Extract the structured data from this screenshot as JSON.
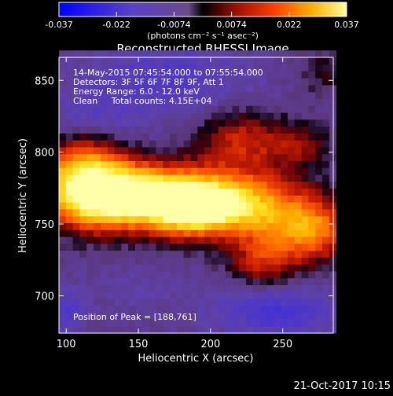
{
  "chart_data": {
    "type": "heatmap",
    "title": "Reconstructed RHESSI Image",
    "xlabel": "Heliocentric X (arcsec)",
    "ylabel": "Heliocentric Y (arcsec)",
    "xlim": [
      95,
      285
    ],
    "ylim": [
      674,
      866
    ],
    "x_ticks": [
      100,
      150,
      200,
      250
    ],
    "y_ticks": [
      700,
      750,
      800,
      850
    ],
    "colorbar": {
      "ticks": [
        "-0.037",
        "-0.022",
        "-0.0074",
        "0.0074",
        "0.022",
        "0.037"
      ],
      "range": [
        -0.037,
        0.037
      ],
      "units": "(photons cm⁻² s⁻¹ asec⁻²)"
    },
    "annotations": [
      "14-May-2015 07:45:54.000 to 07:55:54.000",
      "Detectors: 3F 5F 6F 7F 8F 9F, Att 1",
      "Energy Range: 6.0 - 12.0 keV",
      "Clean     Total counts: 4.15E+04"
    ],
    "peak_label": "Position of Peak = [188,761]",
    "peak": [
      188,
      761
    ],
    "timestamp": "21-Oct-2017 10:15",
    "blobs": [
      {
        "x": 112,
        "y": 782,
        "sx": 22,
        "sy": 20,
        "a": 0.032
      },
      {
        "x": 130,
        "y": 768,
        "sx": 28,
        "sy": 16,
        "a": 0.03
      },
      {
        "x": 165,
        "y": 770,
        "sx": 26,
        "sy": 15,
        "a": 0.027
      },
      {
        "x": 188,
        "y": 761,
        "sx": 20,
        "sy": 14,
        "a": 0.034
      },
      {
        "x": 215,
        "y": 766,
        "sx": 22,
        "sy": 14,
        "a": 0.024
      },
      {
        "x": 250,
        "y": 752,
        "sx": 24,
        "sy": 20,
        "a": 0.025
      },
      {
        "x": 275,
        "y": 745,
        "sx": 14,
        "sy": 14,
        "a": 0.016
      },
      {
        "x": 222,
        "y": 808,
        "sx": 24,
        "sy": 16,
        "a": 0.018
      },
      {
        "x": 265,
        "y": 805,
        "sx": 14,
        "sy": 10,
        "a": 0.01
      },
      {
        "x": 235,
        "y": 722,
        "sx": 16,
        "sy": 12,
        "a": 0.012
      },
      {
        "x": 278,
        "y": 856,
        "sx": 14,
        "sy": 12,
        "a": 0.008
      },
      {
        "x": 100,
        "y": 690,
        "sx": 10,
        "sy": 10,
        "a": -0.01
      },
      {
        "x": 170,
        "y": 850,
        "sx": 40,
        "sy": 20,
        "a": -0.01
      },
      {
        "x": 245,
        "y": 690,
        "sx": 30,
        "sy": 12,
        "a": -0.014
      },
      {
        "x": 115,
        "y": 825,
        "sx": 22,
        "sy": 12,
        "a": -0.008
      },
      {
        "x": 150,
        "y": 705,
        "sx": 20,
        "sy": 10,
        "a": -0.004
      }
    ]
  }
}
